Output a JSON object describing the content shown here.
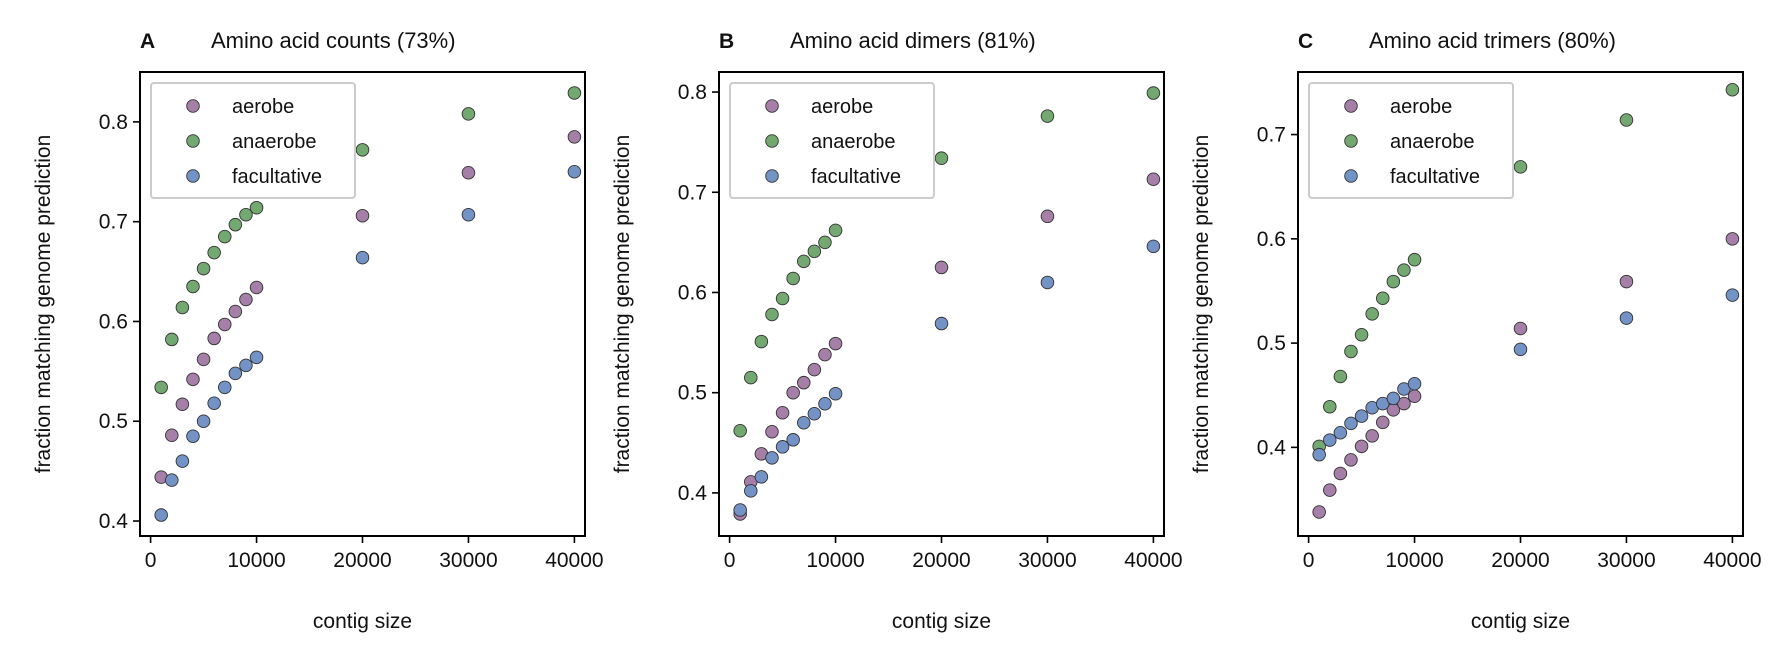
{
  "colors": {
    "aerobe": "#a67fa8",
    "anaerobe": "#73a870",
    "facultative": "#7393c6",
    "marker_edge": "#333333",
    "axis": "#000000",
    "legend_border": "#cccccc"
  },
  "chart_data": [
    {
      "type": "scatter",
      "panel_letter": "A",
      "title": "Amino acid counts (73%)",
      "xlabel": "contig size",
      "ylabel": "fraction matching genome prediction",
      "xlim": [
        -1000,
        41000
      ],
      "ylim": [
        0.385,
        0.85
      ],
      "xticks": [
        0,
        10000,
        20000,
        30000,
        40000
      ],
      "xtick_labels": [
        "0",
        "10000",
        "20000",
        "30000",
        "40000"
      ],
      "yticks": [
        0.4,
        0.5,
        0.6,
        0.7,
        0.8
      ],
      "ytick_labels": [
        "0.4",
        "0.5",
        "0.6",
        "0.7",
        "0.8"
      ],
      "grid": false,
      "legend_position": "top-left",
      "x": [
        1000,
        2000,
        3000,
        4000,
        5000,
        6000,
        7000,
        8000,
        9000,
        10000,
        20000,
        30000,
        40000
      ],
      "series": [
        {
          "name": "aerobe",
          "values": [
            0.444,
            0.486,
            0.517,
            0.542,
            0.562,
            0.583,
            0.597,
            0.61,
            0.622,
            0.634,
            0.706,
            0.749,
            0.785
          ]
        },
        {
          "name": "anaerobe",
          "values": [
            0.534,
            0.582,
            0.614,
            0.635,
            0.653,
            0.669,
            0.685,
            0.697,
            0.707,
            0.714,
            0.772,
            0.808,
            0.829
          ]
        },
        {
          "name": "facultative",
          "values": [
            0.406,
            0.441,
            0.46,
            0.485,
            0.5,
            0.518,
            0.534,
            0.548,
            0.556,
            0.564,
            0.664,
            0.707,
            0.75
          ]
        }
      ]
    },
    {
      "type": "scatter",
      "panel_letter": "B",
      "title": "Amino acid dimers (81%)",
      "xlabel": "contig size",
      "ylabel": "fraction matching genome prediction",
      "xlim": [
        -1000,
        41000
      ],
      "ylim": [
        0.357,
        0.82
      ],
      "xticks": [
        0,
        10000,
        20000,
        30000,
        40000
      ],
      "xtick_labels": [
        "0",
        "10000",
        "20000",
        "30000",
        "40000"
      ],
      "yticks": [
        0.4,
        0.5,
        0.6,
        0.7,
        0.8
      ],
      "ytick_labels": [
        "0.4",
        "0.5",
        "0.6",
        "0.7",
        "0.8"
      ],
      "grid": false,
      "legend_position": "top-left",
      "x": [
        1000,
        2000,
        3000,
        4000,
        5000,
        6000,
        7000,
        8000,
        9000,
        10000,
        20000,
        30000,
        40000
      ],
      "series": [
        {
          "name": "aerobe",
          "values": [
            0.379,
            0.411,
            0.439,
            0.461,
            0.48,
            0.5,
            0.51,
            0.523,
            0.538,
            0.549,
            0.625,
            0.676,
            0.713
          ]
        },
        {
          "name": "anaerobe",
          "values": [
            0.462,
            0.515,
            0.551,
            0.578,
            0.594,
            0.614,
            0.631,
            0.641,
            0.65,
            0.662,
            0.734,
            0.776,
            0.799
          ]
        },
        {
          "name": "facultative",
          "values": [
            0.383,
            0.402,
            0.416,
            0.435,
            0.446,
            0.453,
            0.47,
            0.479,
            0.489,
            0.499,
            0.569,
            0.61,
            0.646
          ]
        }
      ]
    },
    {
      "type": "scatter",
      "panel_letter": "C",
      "title": "Amino acid trimers (80%)",
      "xlabel": "contig size",
      "ylabel": "fraction matching genome prediction",
      "xlim": [
        -1000,
        41000
      ],
      "ylim": [
        0.315,
        0.76
      ],
      "xticks": [
        0,
        10000,
        20000,
        30000,
        40000
      ],
      "xtick_labels": [
        "0",
        "10000",
        "20000",
        "30000",
        "40000"
      ],
      "yticks": [
        0.4,
        0.5,
        0.6,
        0.7
      ],
      "ytick_labels": [
        "0.4",
        "0.5",
        "0.6",
        "0.7"
      ],
      "grid": false,
      "legend_position": "top-left",
      "x": [
        1000,
        2000,
        3000,
        4000,
        5000,
        6000,
        7000,
        8000,
        9000,
        10000,
        20000,
        30000,
        40000
      ],
      "series": [
        {
          "name": "aerobe",
          "values": [
            0.338,
            0.359,
            0.375,
            0.388,
            0.401,
            0.411,
            0.424,
            0.436,
            0.442,
            0.449,
            0.514,
            0.559,
            0.6
          ]
        },
        {
          "name": "anaerobe",
          "values": [
            0.401,
            0.439,
            0.468,
            0.492,
            0.508,
            0.528,
            0.543,
            0.559,
            0.57,
            0.58,
            0.669,
            0.714,
            0.743
          ]
        },
        {
          "name": "facultative",
          "values": [
            0.393,
            0.407,
            0.414,
            0.423,
            0.43,
            0.438,
            0.442,
            0.447,
            0.456,
            0.461,
            0.494,
            0.524,
            0.546
          ]
        }
      ]
    }
  ]
}
